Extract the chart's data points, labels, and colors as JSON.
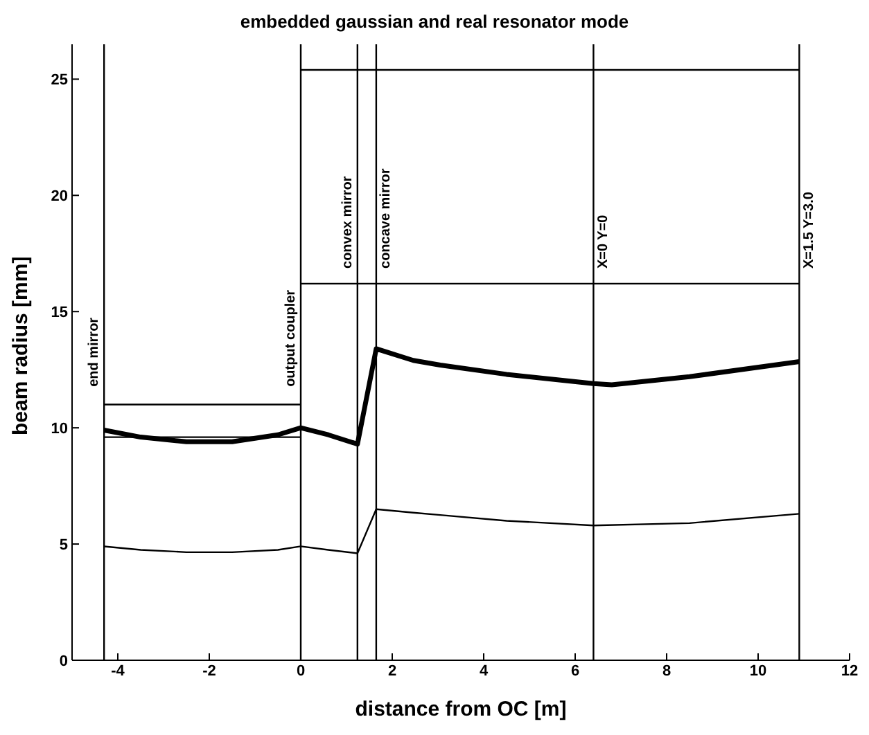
{
  "chart_data": {
    "type": "line",
    "title": "embedded gaussian and real resonator mode",
    "xlabel": "distance from OC [m]",
    "ylabel": "beam radius [mm]",
    "xlim": [
      -5,
      12
    ],
    "xticks": [
      -4,
      -2,
      0,
      2,
      4,
      6,
      8,
      10,
      12
    ],
    "ylim": [
      0,
      26.5
    ],
    "yticks": [
      0,
      5,
      10,
      15,
      20,
      25
    ],
    "grid": false,
    "marker": "none",
    "line_style": "solid",
    "series": [
      {
        "color": "#000000",
        "x": [
          -4.3,
          -3.5,
          -2.5,
          -1.5,
          -0.5,
          0,
          0.6,
          1.24,
          1.65,
          2.46,
          3.05,
          4.5,
          6.4,
          6.8,
          8.5,
          10.9
        ],
        "values": [
          9.9,
          9.6,
          9.4,
          9.4,
          9.7,
          10.0,
          9.7,
          9.3,
          13.4,
          12.9,
          12.7,
          12.3,
          11.9,
          11.85,
          12.2,
          12.85
        ]
      },
      {
        "color": "#000000",
        "x": [
          -4.3,
          -3.5,
          -2.5,
          -1.5,
          -0.5,
          0,
          0.6,
          1.24,
          1.65,
          2.46,
          3.05,
          4.5,
          6.4,
          8.5,
          10.9
        ],
        "values": [
          4.9,
          4.75,
          4.65,
          4.65,
          4.75,
          4.9,
          4.75,
          4.6,
          6.5,
          6.35,
          6.25,
          6.0,
          5.8,
          5.9,
          6.3
        ]
      },
      {
        "color": "#000000",
        "x": [
          -4.3,
          0
        ],
        "values": [
          9.6,
          9.6
        ]
      },
      {
        "color": "#000000",
        "x": [
          -4.3,
          0
        ],
        "values": [
          11,
          11
        ]
      },
      {
        "color": "#000000",
        "x": [
          0,
          10.9
        ],
        "values": [
          25.4,
          25.4
        ]
      },
      {
        "color": "#000000",
        "x": [
          0,
          10.9
        ],
        "values": [
          16.2,
          16.2
        ]
      }
    ],
    "ref_lines": [
      {
        "axis": "x",
        "value": -4.3,
        "label": "end mirror",
        "color": "#000000"
      },
      {
        "axis": "x",
        "value": 0,
        "label": "output coupler",
        "color": "#000000"
      },
      {
        "axis": "x",
        "value": 1.24,
        "label": "convex mirror",
        "color": "#000000"
      },
      {
        "axis": "x",
        "value": 1.65,
        "label": "concave mirror",
        "color": "#000000"
      },
      {
        "axis": "x",
        "value": 6.4,
        "color": "#000000"
      },
      {
        "axis": "x",
        "value": 10.9,
        "color": "#000000"
      }
    ],
    "annotations": [
      "X=0 Y=0",
      "X=1.5 Y=3.0"
    ]
  }
}
